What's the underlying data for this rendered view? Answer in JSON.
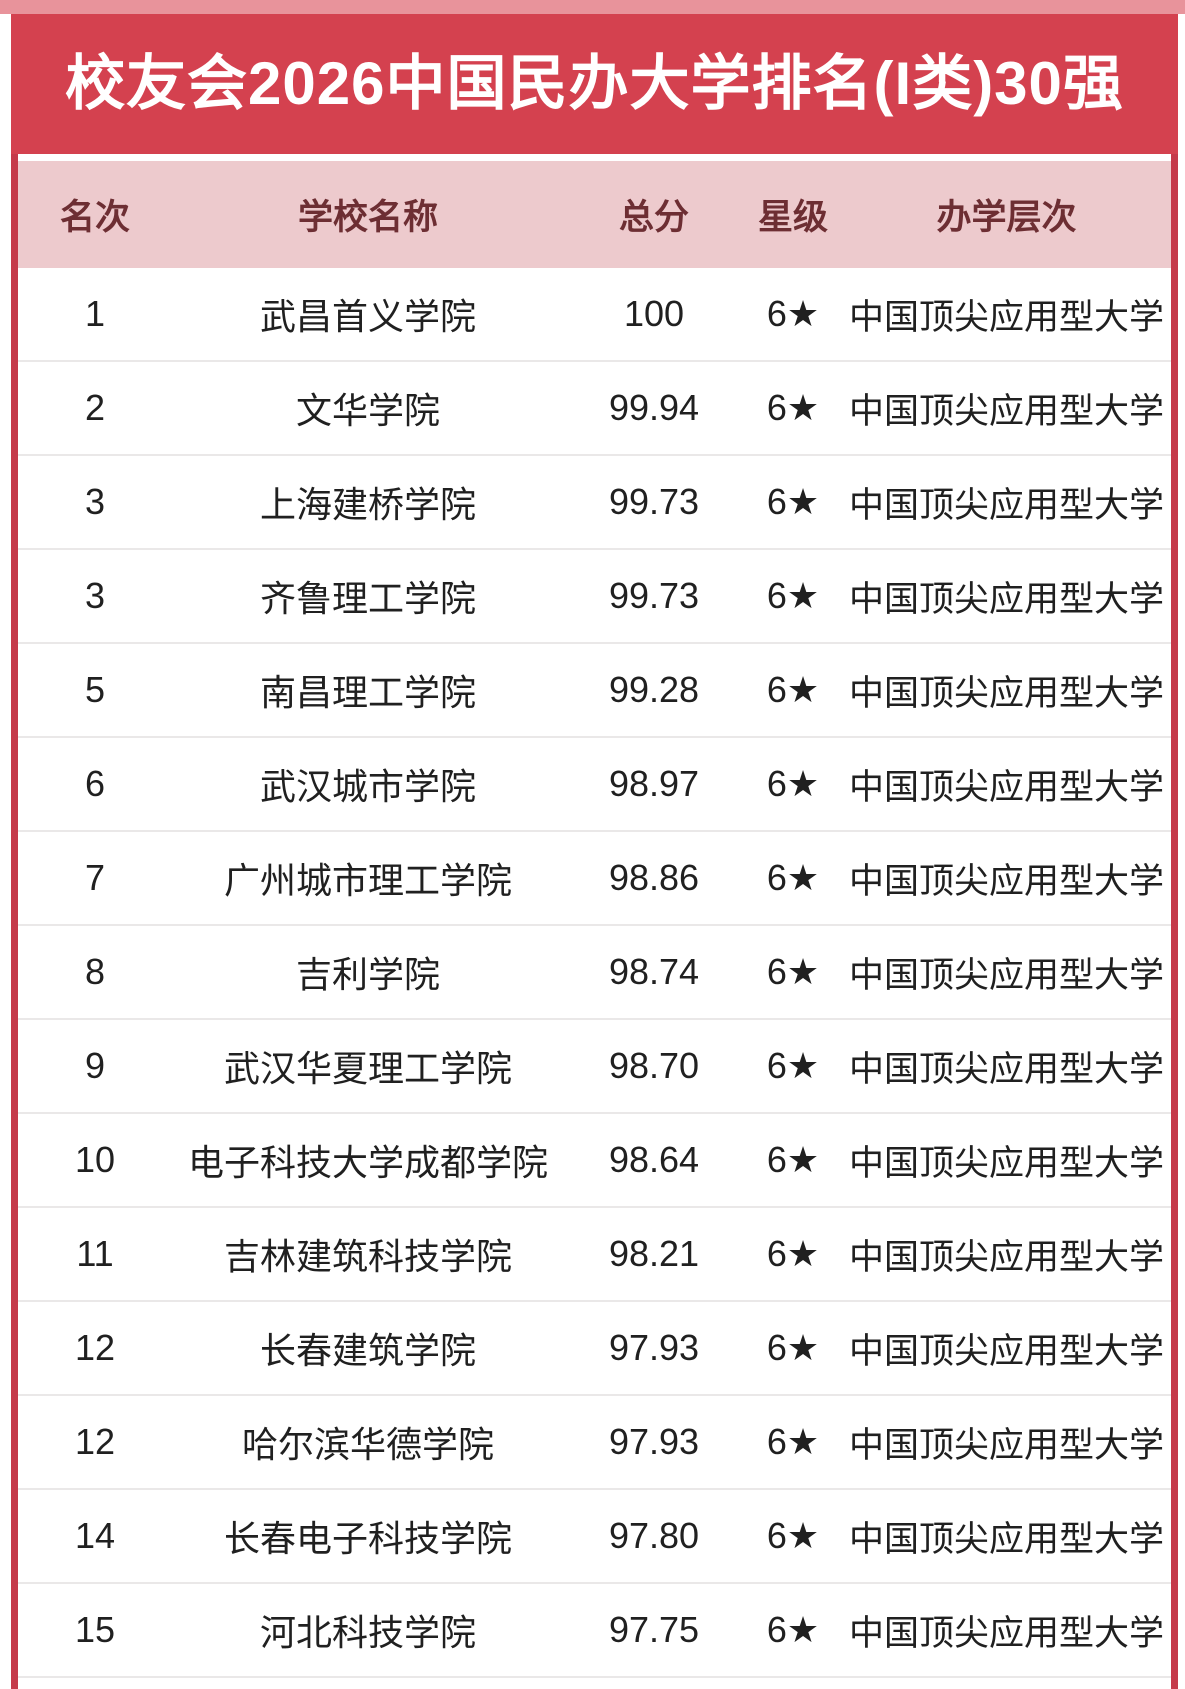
{
  "title": "校友会2026中国民办大学排名(I类)30强",
  "colors": {
    "banner_red": "#d4414f",
    "frame_border_red": "#c53a4a",
    "top_strip_pink": "#e8939b",
    "header_row_pink": "#edcacd",
    "header_text_maroon": "#6d2e33",
    "row_text": "#202020",
    "row_separator": "#eae8e8",
    "banner_text": "#ffffff"
  },
  "chart_data": {
    "type": "table",
    "title": "校友会2026中国民办大学排名(I类)30强",
    "columns": [
      "名次",
      "学校名称",
      "总分",
      "星级",
      "办学层次"
    ],
    "rows": [
      [
        "1",
        "武昌首义学院",
        "100",
        "6★",
        "中国顶尖应用型大学"
      ],
      [
        "2",
        "文华学院",
        "99.94",
        "6★",
        "中国顶尖应用型大学"
      ],
      [
        "3",
        "上海建桥学院",
        "99.73",
        "6★",
        "中国顶尖应用型大学"
      ],
      [
        "3",
        "齐鲁理工学院",
        "99.73",
        "6★",
        "中国顶尖应用型大学"
      ],
      [
        "5",
        "南昌理工学院",
        "99.28",
        "6★",
        "中国顶尖应用型大学"
      ],
      [
        "6",
        "武汉城市学院",
        "98.97",
        "6★",
        "中国顶尖应用型大学"
      ],
      [
        "7",
        "广州城市理工学院",
        "98.86",
        "6★",
        "中国顶尖应用型大学"
      ],
      [
        "8",
        "吉利学院",
        "98.74",
        "6★",
        "中国顶尖应用型大学"
      ],
      [
        "9",
        "武汉华夏理工学院",
        "98.70",
        "6★",
        "中国顶尖应用型大学"
      ],
      [
        "10",
        "电子科技大学成都学院",
        "98.64",
        "6★",
        "中国顶尖应用型大学"
      ],
      [
        "11",
        "吉林建筑科技学院",
        "98.21",
        "6★",
        "中国顶尖应用型大学"
      ],
      [
        "12",
        "长春建筑学院",
        "97.93",
        "6★",
        "中国顶尖应用型大学"
      ],
      [
        "12",
        "哈尔滨华德学院",
        "97.93",
        "6★",
        "中国顶尖应用型大学"
      ],
      [
        "14",
        "长春电子科技学院",
        "97.80",
        "6★",
        "中国顶尖应用型大学"
      ],
      [
        "15",
        "河北科技学院",
        "97.75",
        "6★",
        "中国顶尖应用型大学"
      ]
    ]
  }
}
